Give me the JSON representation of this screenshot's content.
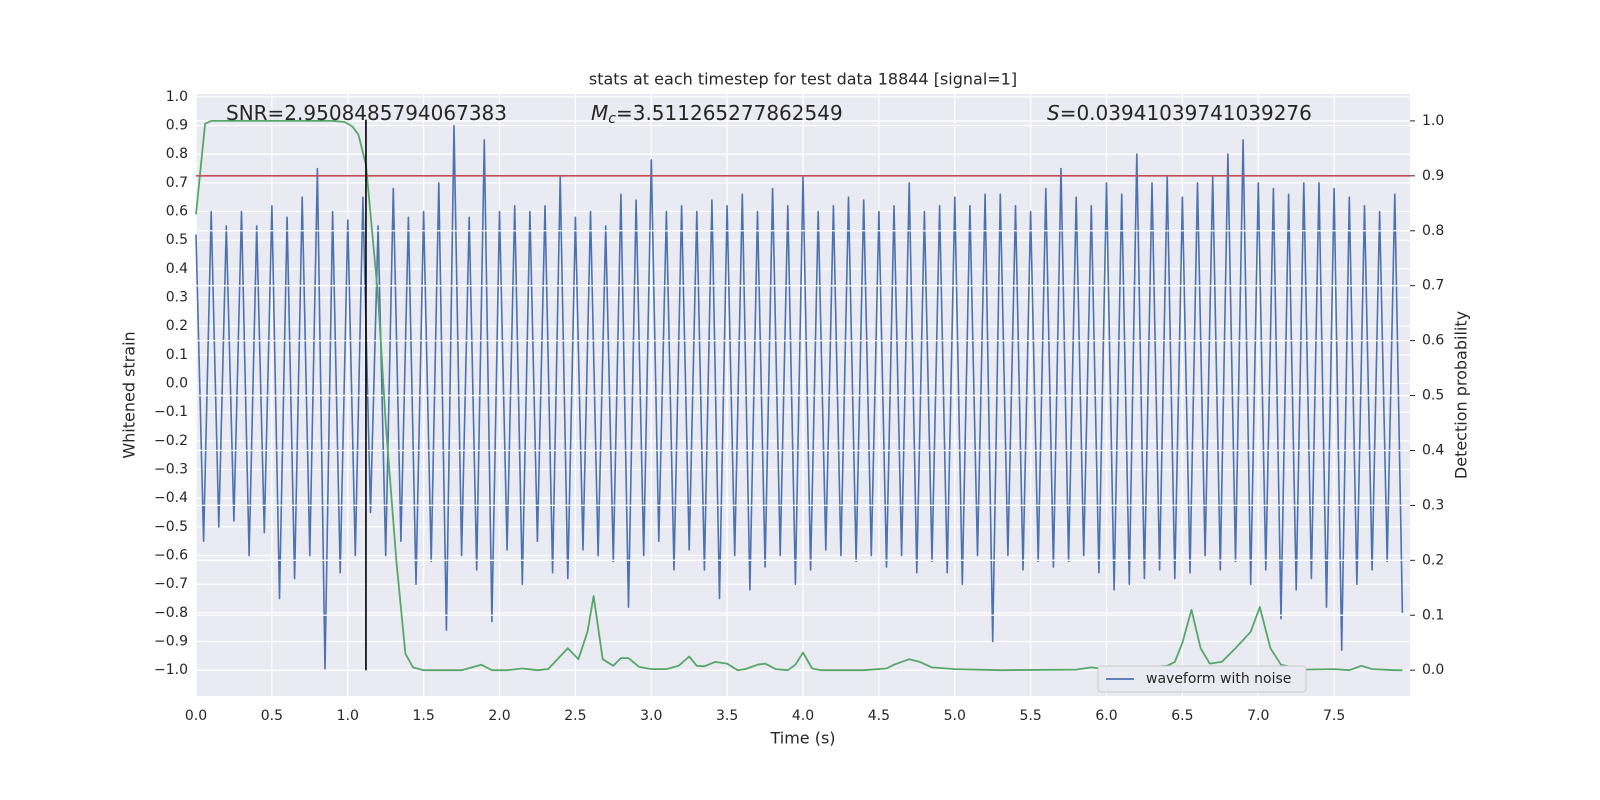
{
  "chart_data": {
    "type": "line",
    "title": "stats at each timestep for test data 18844 [signal=1]",
    "x_label": "Time (s)",
    "y_label": "Whitened strain",
    "y2_label": "Detection probability",
    "annotations": [
      {
        "text": "SNR=2.9508485794067383"
      },
      {
        "symbol": "M",
        "subscript": "c",
        "text": "=3.511265277862549"
      },
      {
        "symbol": "S",
        "text": "=0.03941039741039276"
      }
    ],
    "xlim": [
      0,
      8.0
    ],
    "ylim": [
      -1.09,
      1.01
    ],
    "y2lim": [
      -0.047,
      1.049
    ],
    "grid": true,
    "legend": "lower right",
    "xticks": [
      {
        "value": 0,
        "label": "0.0"
      },
      {
        "value": 0.5,
        "label": "0.5"
      },
      {
        "value": 1,
        "label": "1.0"
      },
      {
        "value": 1.5,
        "label": "1.5"
      },
      {
        "value": 2,
        "label": "2.0"
      },
      {
        "value": 2.5,
        "label": "2.5"
      },
      {
        "value": 3,
        "label": "3.0"
      },
      {
        "value": 3.5,
        "label": "3.5"
      },
      {
        "value": 4,
        "label": "4.0"
      },
      {
        "value": 4.5,
        "label": "4.5"
      },
      {
        "value": 5,
        "label": "5.0"
      },
      {
        "value": 5.5,
        "label": "5.5"
      },
      {
        "value": 6,
        "label": "6.0"
      },
      {
        "value": 6.5,
        "label": "6.5"
      },
      {
        "value": 7,
        "label": "7.0"
      },
      {
        "value": 7.5,
        "label": "7.5"
      }
    ],
    "yticks": [
      {
        "value": -1,
        "label": "−1.0"
      },
      {
        "value": -0.9,
        "label": "−0.9"
      },
      {
        "value": -0.8,
        "label": "−0.8"
      },
      {
        "value": -0.7,
        "label": "−0.7"
      },
      {
        "value": -0.6,
        "label": "−0.6"
      },
      {
        "value": -0.5,
        "label": "−0.5"
      },
      {
        "value": -0.4,
        "label": "−0.4"
      },
      {
        "value": -0.3,
        "label": "−0.3"
      },
      {
        "value": -0.2,
        "label": "−0.2"
      },
      {
        "value": -0.1,
        "label": "−0.1"
      },
      {
        "value": 0,
        "label": "0.0"
      },
      {
        "value": 0.1,
        "label": "0.1"
      },
      {
        "value": 0.2,
        "label": "0.2"
      },
      {
        "value": 0.3,
        "label": "0.3"
      },
      {
        "value": 0.4,
        "label": "0.4"
      },
      {
        "value": 0.5,
        "label": "0.5"
      },
      {
        "value": 0.6,
        "label": "0.6"
      },
      {
        "value": 0.7,
        "label": "0.7"
      },
      {
        "value": 0.8,
        "label": "0.8"
      },
      {
        "value": 0.9,
        "label": "0.9"
      },
      {
        "value": 1,
        "label": "1.0"
      }
    ],
    "y2ticks": [
      {
        "value": 0,
        "label": "0.0"
      },
      {
        "value": 0.1,
        "label": "0.1"
      },
      {
        "value": 0.2,
        "label": "0.2"
      },
      {
        "value": 0.3,
        "label": "0.3"
      },
      {
        "value": 0.4,
        "label": "0.4"
      },
      {
        "value": 0.5,
        "label": "0.5"
      },
      {
        "value": 0.6,
        "label": "0.6"
      },
      {
        "value": 0.7,
        "label": "0.7"
      },
      {
        "value": 0.8,
        "label": "0.8"
      },
      {
        "value": 0.9,
        "label": "0.9"
      },
      {
        "value": 1,
        "label": "1.0"
      }
    ],
    "threshold": {
      "y2": 0.9,
      "color": "#c44e52"
    },
    "vline": {
      "x": 1.12,
      "ymin": -1.0,
      "ymax": 0.92,
      "color": "#000000"
    },
    "series": [
      {
        "name": "waveform with noise",
        "color": "#4c72b0",
        "x": [
          0,
          0.05,
          0.1,
          0.15,
          0.2,
          0.25,
          0.3,
          0.35,
          0.4,
          0.45,
          0.5,
          0.55,
          0.6,
          0.65,
          0.7,
          0.75,
          0.8,
          0.85,
          0.9,
          0.95,
          1,
          1.05,
          1.1,
          1.15,
          1.2,
          1.25,
          1.3,
          1.35,
          1.4,
          1.45,
          1.5,
          1.55,
          1.6,
          1.65,
          1.7,
          1.75,
          1.8,
          1.85,
          1.9,
          1.95,
          2,
          2.05,
          2.1,
          2.15,
          2.2,
          2.25,
          2.3,
          2.35,
          2.4,
          2.45,
          2.5,
          2.55,
          2.6,
          2.65,
          2.7,
          2.75,
          2.8,
          2.85,
          2.9,
          2.95,
          3,
          3.05,
          3.1,
          3.15,
          3.2,
          3.25,
          3.3,
          3.35,
          3.4,
          3.45,
          3.5,
          3.55,
          3.6,
          3.65,
          3.7,
          3.75,
          3.8,
          3.85,
          3.9,
          3.95,
          4,
          4.05,
          4.1,
          4.15,
          4.2,
          4.25,
          4.3,
          4.35,
          4.4,
          4.45,
          4.5,
          4.55,
          4.6,
          4.65,
          4.7,
          4.75,
          4.8,
          4.85,
          4.9,
          4.95,
          5,
          5.05,
          5.1,
          5.15,
          5.2,
          5.25,
          5.3,
          5.35,
          5.4,
          5.45,
          5.5,
          5.55,
          5.6,
          5.65,
          5.7,
          5.75,
          5.8,
          5.85,
          5.9,
          5.95,
          6,
          6.05,
          6.1,
          6.15,
          6.2,
          6.25,
          6.3,
          6.35,
          6.4,
          6.45,
          6.5,
          6.55,
          6.6,
          6.65,
          6.7,
          6.75,
          6.8,
          6.85,
          6.9,
          6.95,
          7,
          7.05,
          7.1,
          7.15,
          7.2,
          7.25,
          7.3,
          7.35,
          7.4,
          7.45,
          7.5,
          7.55,
          7.6,
          7.65,
          7.7,
          7.75,
          7.8,
          7.85,
          7.9,
          7.95
        ],
        "values": [
          0.52,
          -0.55,
          0.6,
          -0.5,
          0.55,
          -0.48,
          0.6,
          -0.6,
          0.55,
          -0.52,
          0.62,
          -0.75,
          0.58,
          -0.68,
          0.65,
          -0.6,
          0.75,
          -1.0,
          0.6,
          -0.66,
          0.57,
          -0.6,
          0.65,
          -0.45,
          0.55,
          -0.6,
          0.68,
          -0.55,
          0.58,
          -0.7,
          0.6,
          -0.62,
          0.7,
          -0.86,
          0.9,
          -0.6,
          0.58,
          -0.65,
          0.85,
          -0.83,
          0.6,
          -0.58,
          0.62,
          -0.7,
          0.6,
          -0.55,
          0.62,
          -0.66,
          0.72,
          -0.68,
          0.58,
          -0.58,
          0.6,
          -0.6,
          0.55,
          -0.62,
          0.66,
          -0.78,
          0.64,
          -0.6,
          0.78,
          -0.55,
          0.6,
          -0.65,
          0.62,
          -0.58,
          0.6,
          -0.65,
          0.64,
          -0.75,
          0.62,
          -0.6,
          0.66,
          -0.72,
          0.6,
          -0.64,
          0.68,
          -0.6,
          0.62,
          -0.7,
          0.72,
          -0.65,
          0.6,
          -0.58,
          0.62,
          -0.6,
          0.65,
          -0.62,
          0.64,
          -0.6,
          0.6,
          -0.64,
          0.62,
          -0.6,
          0.7,
          -0.66,
          0.6,
          -0.62,
          0.62,
          -0.66,
          0.65,
          -0.7,
          0.62,
          -0.6,
          0.66,
          -0.9,
          0.66,
          -0.6,
          0.62,
          -0.65,
          0.6,
          -0.62,
          0.68,
          -0.64,
          0.75,
          -0.62,
          0.65,
          -0.6,
          0.62,
          -0.66,
          0.7,
          -0.72,
          0.66,
          -0.7,
          0.8,
          -0.68,
          0.7,
          -0.65,
          0.72,
          -0.68,
          0.65,
          -0.66,
          0.7,
          -0.6,
          0.72,
          -0.65,
          0.8,
          -0.62,
          0.85,
          -0.7,
          0.7,
          -0.65,
          0.68,
          -0.82,
          0.66,
          -0.72,
          0.7,
          -0.68,
          0.7,
          -0.78,
          0.68,
          -0.93,
          0.65,
          -0.7,
          0.62,
          -0.65,
          0.6,
          -0.62,
          0.66,
          -0.8
        ]
      },
      {
        "color": "#55a868",
        "axis": "y2",
        "x": [
          0,
          0.06,
          0.1,
          0.3,
          0.6,
          0.9,
          0.98,
          1.03,
          1.07,
          1.12,
          1.2,
          1.25,
          1.32,
          1.38,
          1.43,
          1.5,
          1.75,
          1.88,
          1.95,
          2.05,
          2.15,
          2.25,
          2.32,
          2.45,
          2.52,
          2.58,
          2.62,
          2.68,
          2.75,
          2.8,
          2.85,
          2.92,
          3,
          3.1,
          3.18,
          3.25,
          3.3,
          3.35,
          3.42,
          3.5,
          3.57,
          3.62,
          3.7,
          3.75,
          3.82,
          3.9,
          3.95,
          4,
          4.06,
          4.12,
          4.4,
          4.55,
          4.6,
          4.7,
          4.77,
          4.85,
          5,
          5.3,
          5.8,
          5.9,
          6,
          6.1,
          6.18,
          6.3,
          6.4,
          6.45,
          6.5,
          6.56,
          6.62,
          6.68,
          6.76,
          6.85,
          6.9,
          6.95,
          7.01,
          7.08,
          7.15,
          7.3,
          7.5,
          7.6,
          7.68,
          7.75,
          7.9,
          7.95
        ],
        "values": [
          0.83,
          0.995,
          1.0,
          1.0,
          1.0,
          1.0,
          0.998,
          0.99,
          0.975,
          0.92,
          0.68,
          0.45,
          0.2,
          0.03,
          0.005,
          0.0,
          0.0,
          0.01,
          0.0,
          0.0,
          0.003,
          0.0,
          0.002,
          0.04,
          0.02,
          0.07,
          0.135,
          0.02,
          0.008,
          0.022,
          0.022,
          0.006,
          0.002,
          0.002,
          0.008,
          0.025,
          0.008,
          0.007,
          0.015,
          0.012,
          0.0,
          0.002,
          0.01,
          0.012,
          0.002,
          0.0,
          0.01,
          0.032,
          0.003,
          0.0,
          0.0,
          0.003,
          0.01,
          0.02,
          0.015,
          0.005,
          0.002,
          0.0,
          0.001,
          0.005,
          0.002,
          0.003,
          0.006,
          0.006,
          0.008,
          0.015,
          0.05,
          0.11,
          0.04,
          0.012,
          0.015,
          0.04,
          0.055,
          0.07,
          0.115,
          0.04,
          0.01,
          0.001,
          0.002,
          0.0,
          0.008,
          0.002,
          0.0,
          0.0
        ]
      }
    ]
  }
}
